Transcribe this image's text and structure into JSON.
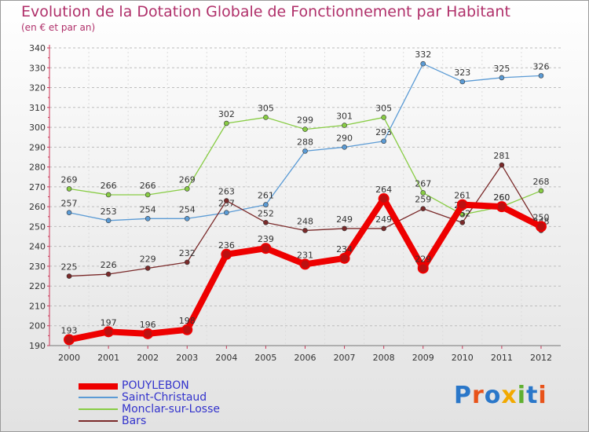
{
  "title": "Evolution de la Dotation Globale de Fonctionnement par Habitant",
  "subtitle": "(en € et par an)",
  "chart_data": {
    "type": "line",
    "title": "Evolution de la Dotation Globale de Fonctionnement par Habitant",
    "subtitle": "(en € et par an)",
    "xlabel": "",
    "ylabel": "",
    "ylim": [
      190,
      340
    ],
    "y_ticks": [
      190,
      200,
      210,
      220,
      230,
      240,
      250,
      260,
      270,
      280,
      290,
      300,
      310,
      320,
      330,
      340
    ],
    "x": [
      "2000",
      "2001",
      "2002",
      "2003",
      "2004",
      "2005",
      "2006",
      "2007",
      "2008",
      "2009",
      "2010",
      "2011",
      "2012"
    ],
    "grid": "horizontal dashed",
    "legend_position": "bottom-left",
    "series": [
      {
        "name": "POUYLEBON",
        "color": "#ee0000",
        "values": [
          193,
          197,
          196,
          198,
          236,
          239,
          231,
          234,
          264,
          229,
          261,
          260,
          250
        ]
      },
      {
        "name": "Saint-Christaud",
        "color": "#5b9bd5",
        "values": [
          257,
          253,
          254,
          254,
          257,
          261,
          288,
          290,
          293,
          332,
          323,
          325,
          326
        ]
      },
      {
        "name": "Monclar-sur-Losse",
        "color": "#88cc44",
        "values": [
          269,
          266,
          266,
          269,
          302,
          305,
          299,
          301,
          305,
          267,
          256,
          260,
          268
        ]
      },
      {
        "name": "Bars",
        "color": "#7a2a2a",
        "values": [
          225,
          226,
          229,
          232,
          263,
          252,
          248,
          249,
          249,
          259,
          252,
          281,
          248
        ]
      }
    ]
  },
  "legend": {
    "items": [
      "POUYLEBON",
      "Saint-Christaud",
      "Monclar-sur-Losse",
      "Bars"
    ]
  },
  "logo": {
    "text": "Proxiti",
    "colors": [
      "#2a77c9",
      "#e8531a",
      "#2a77c9",
      "#f2a900",
      "#5fb030",
      "#2a77c9",
      "#e8531a"
    ]
  }
}
